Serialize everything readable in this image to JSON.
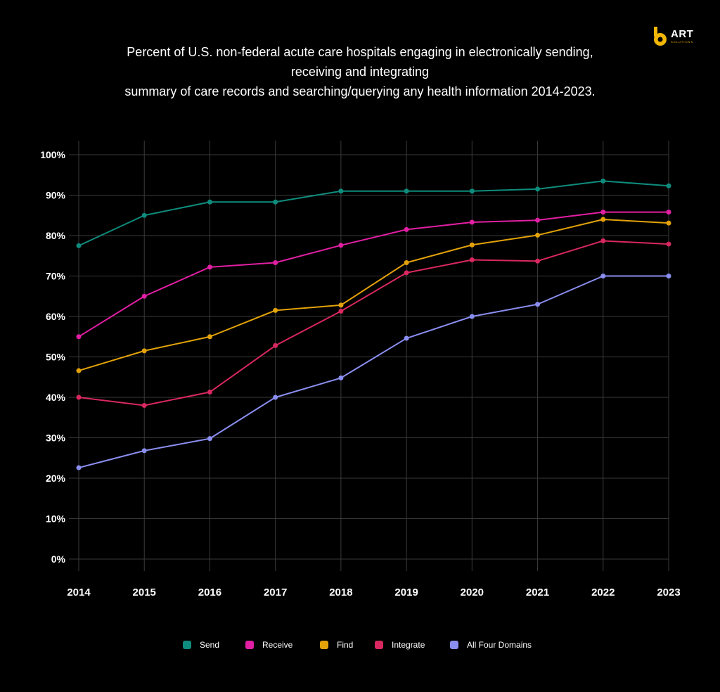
{
  "title_lines": [
    "Percent of U.S. non-federal acute care hospitals engaging in electronically sending,",
    "receiving and integrating",
    "summary of care records and searching/querying any health information 2014-2023."
  ],
  "logo": {
    "text": "ART",
    "subtext": "SOLUTIONS",
    "color": "#f2b705"
  },
  "chart_data": {
    "type": "line",
    "title": "Percent of U.S. non-federal acute care hospitals engaging in electronically sending, receiving and integrating summary of care records and searching/querying any health information 2014-2023.",
    "xlabel": "",
    "ylabel": "",
    "categories": [
      "2014",
      "2015",
      "2016",
      "2017",
      "2018",
      "2019",
      "2020",
      "2021",
      "2022",
      "2023"
    ],
    "ylim": [
      0,
      100
    ],
    "yticks": [
      0,
      10,
      20,
      30,
      40,
      50,
      60,
      70,
      80,
      90,
      100
    ],
    "ytick_labels": [
      "0%",
      "10%",
      "20%",
      "30%",
      "40%",
      "50%",
      "60%",
      "70%",
      "80%",
      "90%",
      "100%"
    ],
    "grid": true,
    "legend_position": "bottom-center",
    "series": [
      {
        "name": "Send",
        "color": "#0e8c7d",
        "values": [
          77.5,
          85,
          88.3,
          88.3,
          91,
          91,
          91,
          91.5,
          93.5,
          92.3
        ]
      },
      {
        "name": "Receive",
        "color": "#e11fa3",
        "values": [
          55,
          65,
          72.2,
          73.3,
          77.6,
          81.5,
          83.3,
          83.8,
          85.8,
          85.8
        ]
      },
      {
        "name": "Find",
        "color": "#e3a209",
        "values": [
          46.6,
          51.5,
          55,
          61.5,
          62.8,
          73.3,
          77.7,
          80.1,
          84,
          83.1
        ]
      },
      {
        "name": "Integrate",
        "color": "#d8285f",
        "values": [
          40,
          38,
          41.3,
          52.8,
          61.3,
          70.8,
          74,
          73.7,
          78.7,
          77.9
        ]
      },
      {
        "name": "All Four Domains",
        "color": "#8a8ef0",
        "values": [
          22.6,
          26.8,
          29.8,
          40,
          44.8,
          54.6,
          60,
          63,
          70,
          70
        ]
      }
    ]
  }
}
